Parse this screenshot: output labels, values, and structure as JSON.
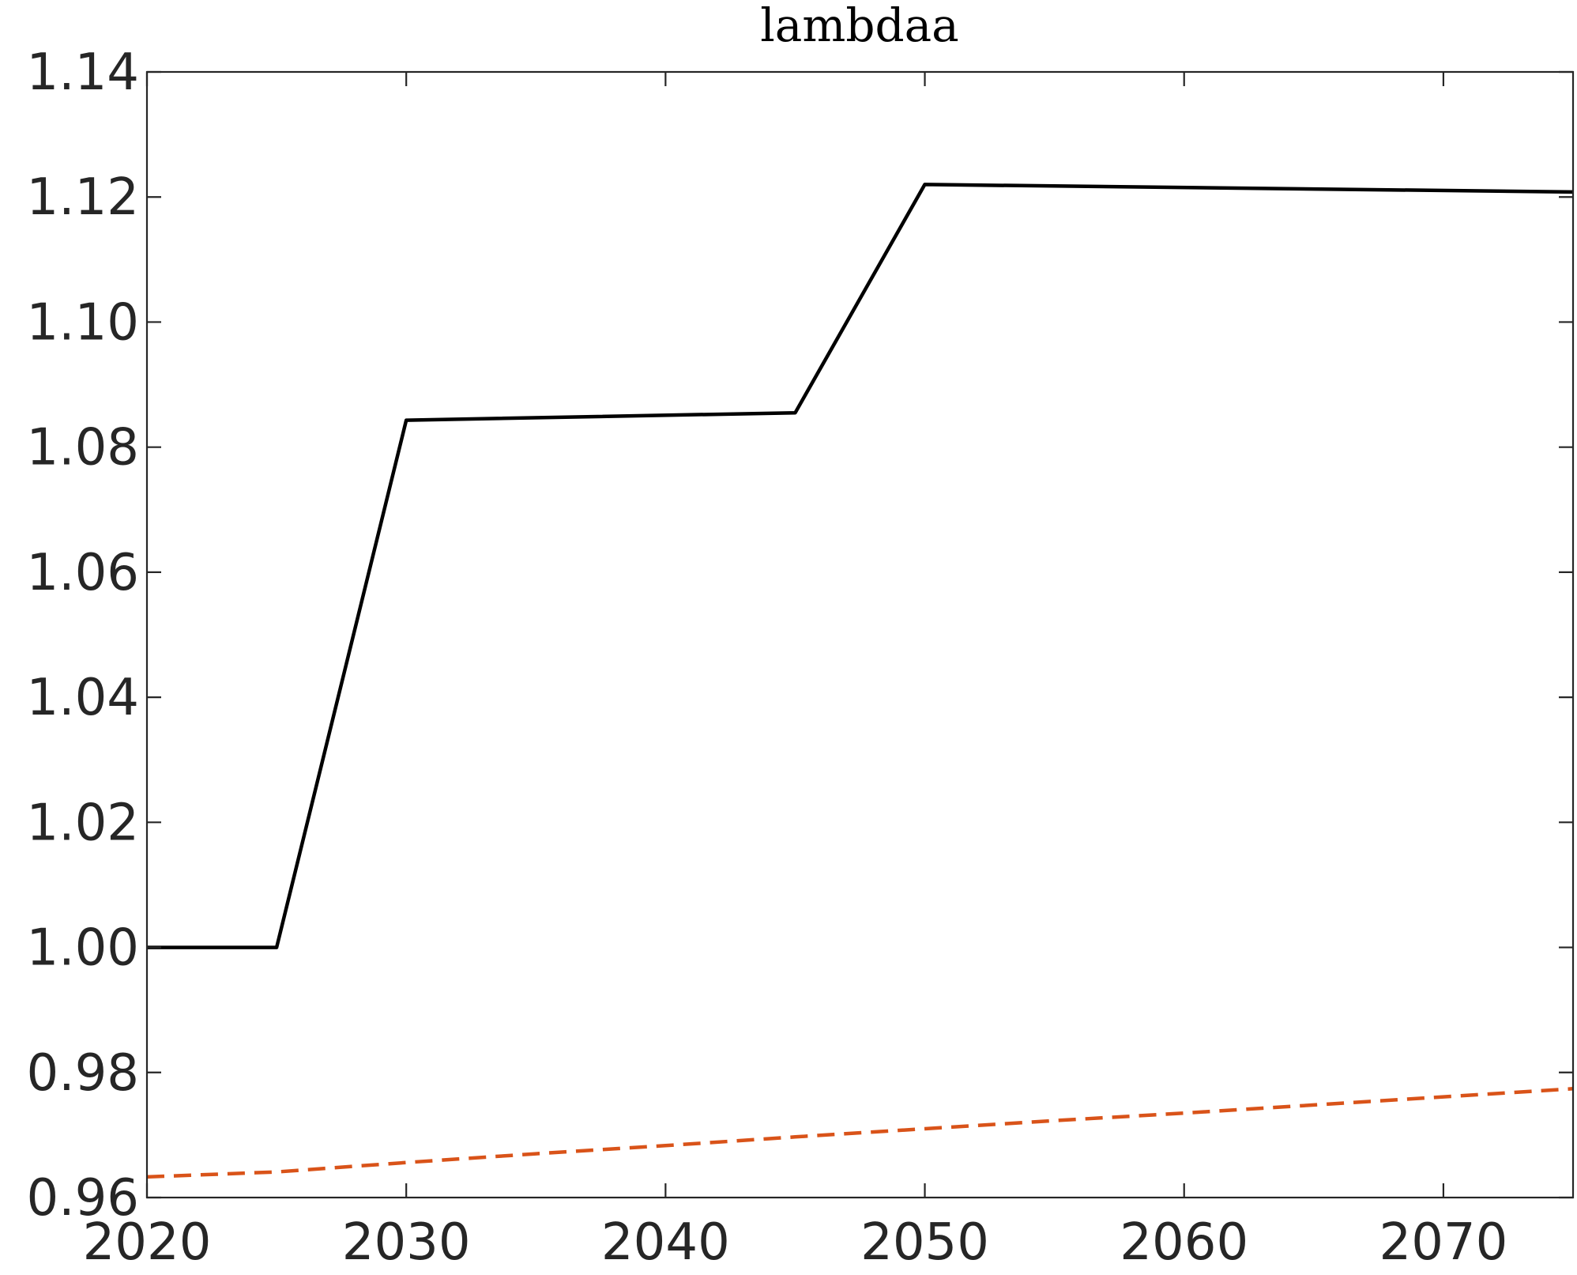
{
  "chart_data": {
    "type": "line",
    "title": "lambdaa",
    "xlabel": "",
    "ylabel": "",
    "xlim": [
      2020,
      2075
    ],
    "ylim": [
      0.96,
      1.14
    ],
    "x_ticks": [
      2020,
      2030,
      2040,
      2050,
      2060,
      2070
    ],
    "y_ticks": [
      0.96,
      0.98,
      1.0,
      1.02,
      1.04,
      1.06,
      1.08,
      1.1,
      1.12,
      1.14
    ],
    "y_tick_labels": [
      "0.96",
      "0.98",
      "1.00",
      "1.02",
      "1.04",
      "1.06",
      "1.08",
      "1.10",
      "1.12",
      "1.14"
    ],
    "grid": false,
    "legend": "none",
    "series": [
      {
        "color": "#000000",
        "line_style": "solid",
        "x": [
          2020,
          2025,
          2030,
          2045,
          2050,
          2075
        ],
        "y": [
          1.0,
          1.0,
          1.0843,
          1.0855,
          1.122,
          1.1208
        ]
      },
      {
        "color": "#D95319",
        "line_style": "dashed",
        "x": [
          2020,
          2025,
          2030,
          2035,
          2040,
          2045,
          2050,
          2055,
          2060,
          2065,
          2070,
          2075
        ],
        "y": [
          0.9633,
          0.9641,
          0.9656,
          0.967,
          0.9683,
          0.9697,
          0.971,
          0.9723,
          0.9735,
          0.9748,
          0.9761,
          0.9774
        ]
      }
    ]
  }
}
